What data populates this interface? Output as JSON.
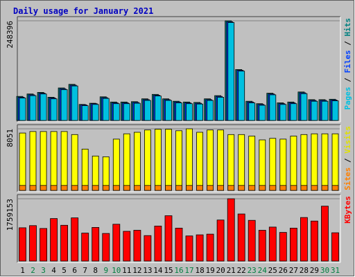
{
  "chart_data": [
    {
      "type": "bar",
      "title": "Daily usage for January 2021",
      "categories": [
        "1",
        "2",
        "3",
        "4",
        "5",
        "6",
        "7",
        "8",
        "9",
        "10",
        "11",
        "12",
        "13",
        "14",
        "15",
        "16",
        "17",
        "18",
        "19",
        "20",
        "21",
        "22",
        "23",
        "24",
        "25",
        "26",
        "27",
        "28",
        "29",
        "30",
        "31"
      ],
      "weekend_days": [
        "2",
        "3",
        "9",
        "10",
        "16",
        "17",
        "23",
        "24",
        "30",
        "31"
      ],
      "ymax_label": "248396",
      "axis_legend": [
        {
          "text": "Pages",
          "color": "#00c0e0"
        },
        {
          "text": " / ",
          "color": "#000000"
        },
        {
          "text": "Files",
          "color": "#0040ff"
        },
        {
          "text": " / ",
          "color": "#000000"
        },
        {
          "text": "Hits",
          "color": "#008080"
        }
      ],
      "ymax": 248396,
      "series": [
        {
          "name": "Hits",
          "color": "#008080",
          "values": [
            60000,
            66000,
            70000,
            58000,
            81000,
            90000,
            40000,
            43000,
            59000,
            46000,
            46000,
            47000,
            54000,
            65000,
            54000,
            48000,
            46000,
            45000,
            54000,
            62000,
            248396,
            127000,
            48000,
            42000,
            68000,
            44000,
            46000,
            71000,
            52000,
            52000,
            53000
          ]
        },
        {
          "name": "Files",
          "color": "#0040ff",
          "values": [
            58000,
            64000,
            68000,
            56000,
            79000,
            88000,
            39000,
            42000,
            57000,
            44000,
            44000,
            45000,
            52000,
            63000,
            52000,
            46000,
            44000,
            43000,
            52000,
            60000,
            246000,
            125000,
            46000,
            40000,
            66000,
            42000,
            44000,
            69000,
            50000,
            50000,
            51000
          ]
        },
        {
          "name": "Pages",
          "color": "#00c0e0",
          "values": [
            56000,
            62000,
            66000,
            54000,
            77000,
            86000,
            37000,
            40000,
            55000,
            42000,
            42000,
            43000,
            50000,
            61000,
            50000,
            44000,
            42000,
            41000,
            50000,
            58000,
            244000,
            123000,
            44000,
            38000,
            64000,
            40000,
            42000,
            67000,
            48000,
            48000,
            49000
          ]
        }
      ]
    },
    {
      "type": "bar",
      "ymax_label": "8051",
      "axis_legend": [
        {
          "text": "Sites",
          "color": "#ff8000"
        },
        {
          "text": " / ",
          "color": "#000000"
        },
        {
          "text": "Visits",
          "color": "#e0e000"
        }
      ],
      "ymax": 8051,
      "series": [
        {
          "name": "Visits",
          "color": "#ffff00",
          "values": [
            7500,
            7700,
            7700,
            7700,
            7700,
            7300,
            5400,
            4500,
            4400,
            6700,
            7400,
            7600,
            7900,
            8000,
            8000,
            7800,
            8051,
            7600,
            7900,
            7900,
            7300,
            7300,
            7100,
            6600,
            6800,
            6700,
            7100,
            7300,
            7400,
            7400,
            7400
          ]
        },
        {
          "name": "Sites",
          "color": "#ff8000",
          "values": [
            650,
            650,
            650,
            650,
            650,
            650,
            650,
            650,
            650,
            650,
            650,
            650,
            650,
            650,
            650,
            650,
            650,
            650,
            650,
            650,
            650,
            650,
            650,
            650,
            650,
            650,
            650,
            650,
            650,
            650,
            650
          ]
        }
      ]
    },
    {
      "type": "bar",
      "ymax_label": "1759153",
      "axis_legend": [
        {
          "text": "KBytes",
          "color": "#ff0000"
        }
      ],
      "ymax": 1759153,
      "series": [
        {
          "name": "KBytes",
          "color": "#ff0000",
          "values": [
            940000,
            1000000,
            920000,
            1200000,
            1010000,
            1220000,
            790000,
            950000,
            780000,
            1040000,
            840000,
            870000,
            720000,
            990000,
            1280000,
            930000,
            710000,
            740000,
            760000,
            1160000,
            1759153,
            1330000,
            1150000,
            870000,
            960000,
            810000,
            930000,
            1230000,
            1130000,
            1550000,
            800000
          ]
        }
      ]
    }
  ]
}
